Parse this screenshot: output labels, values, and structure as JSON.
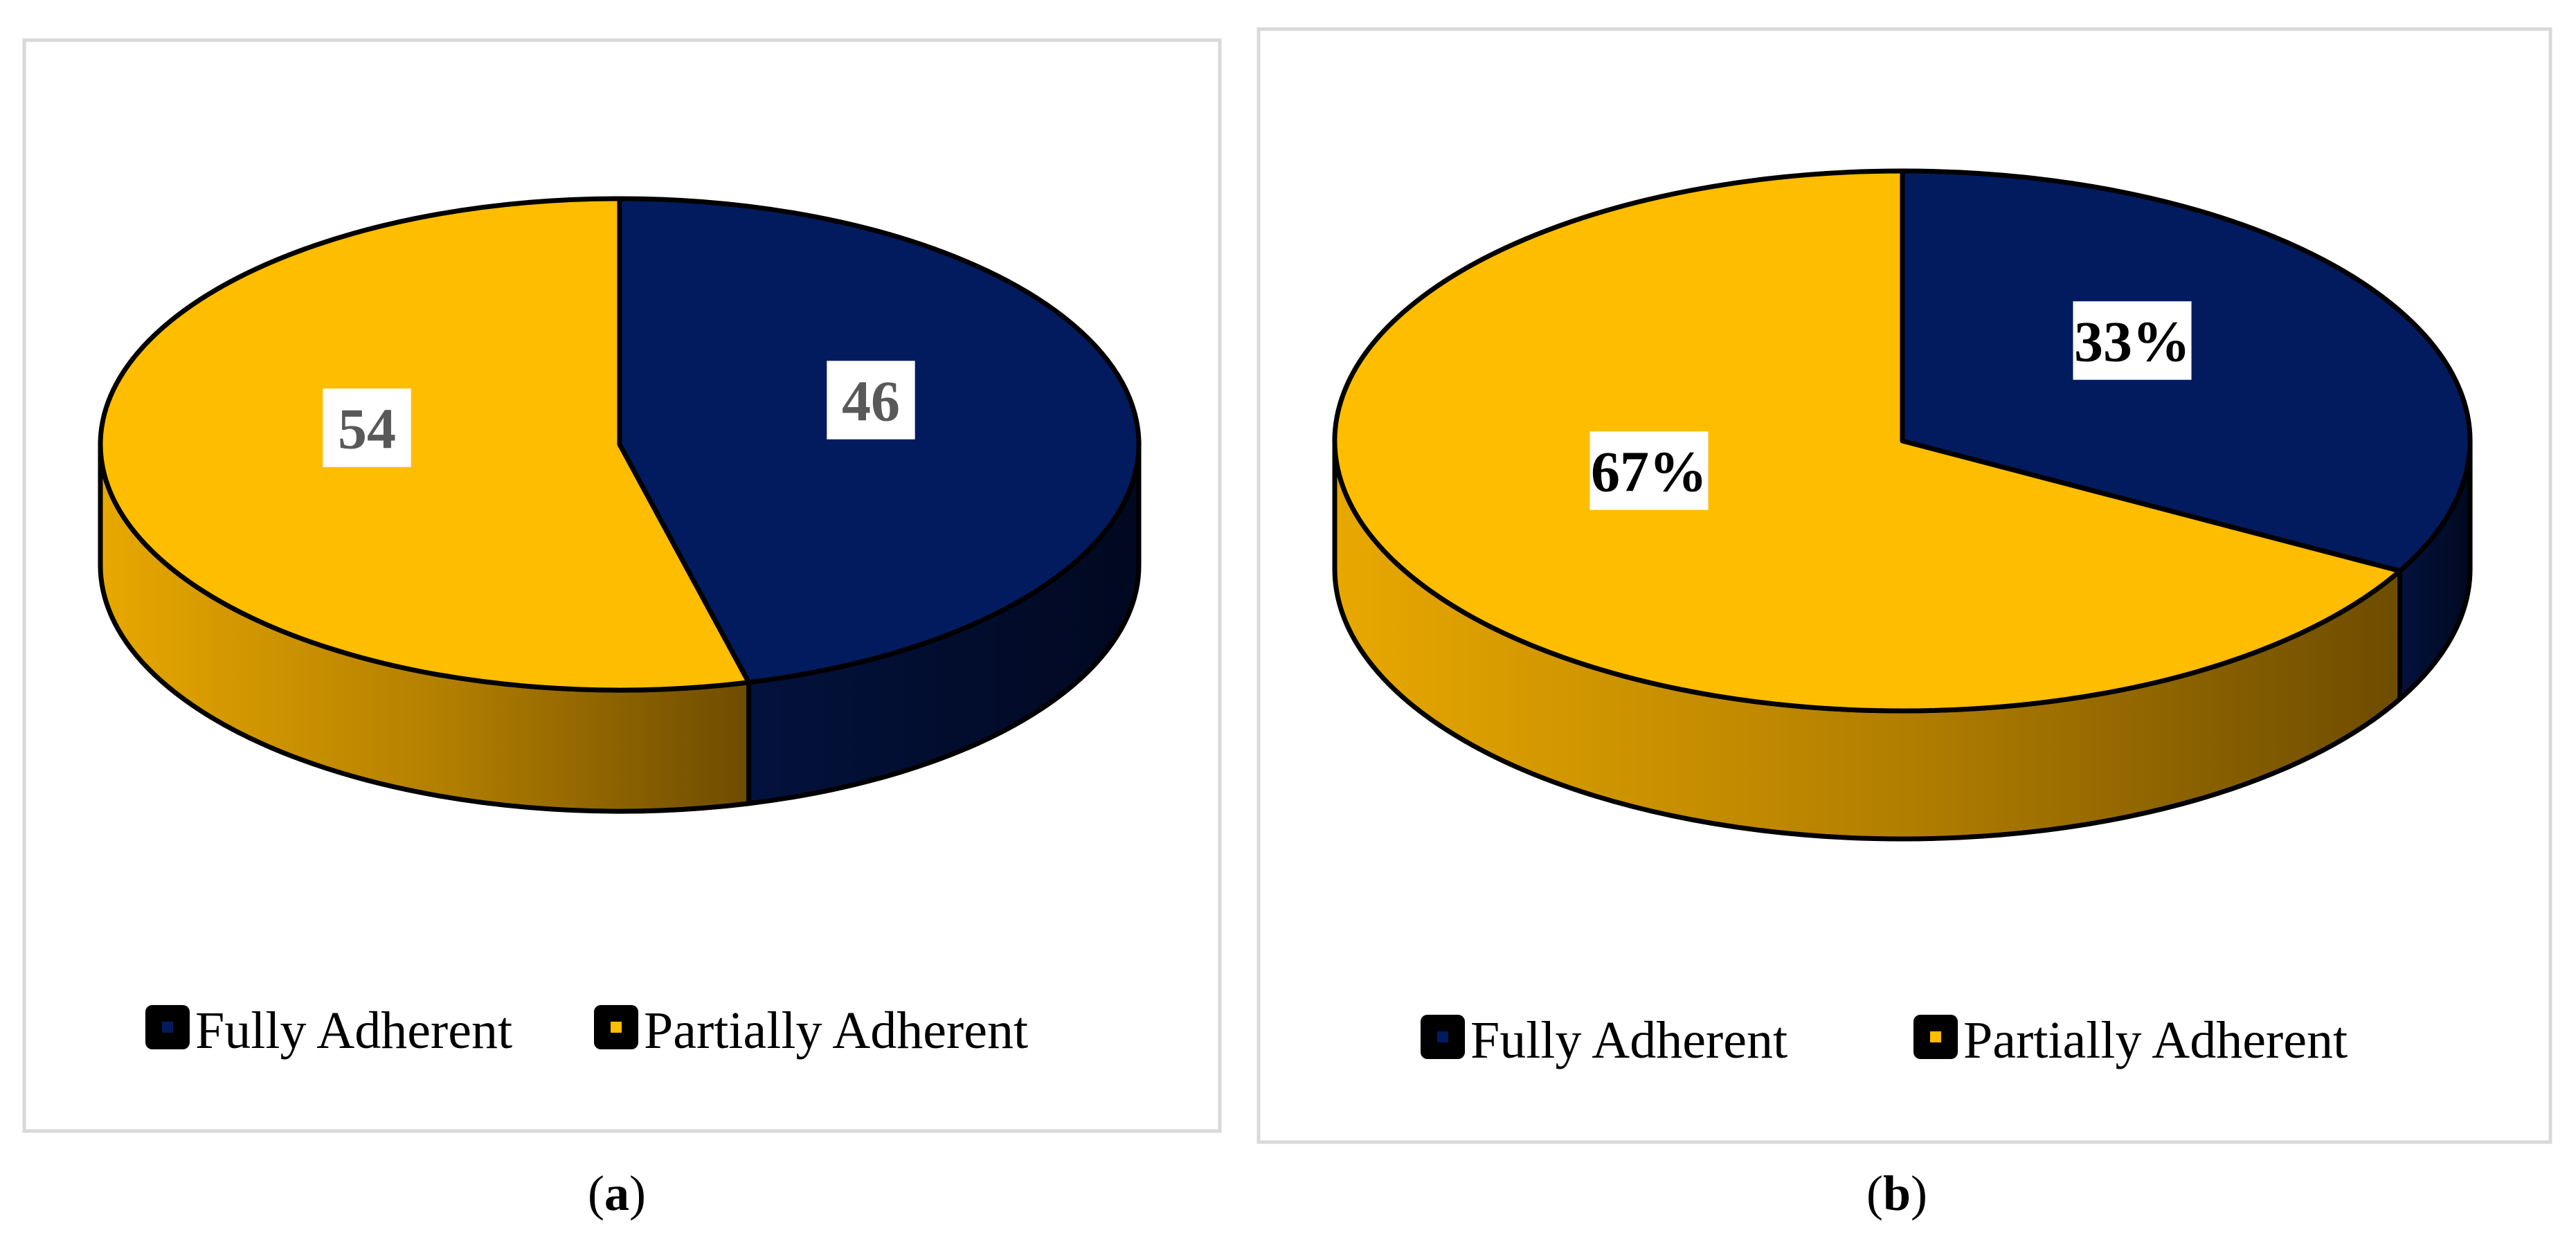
{
  "colors": {
    "fully_adherent": "#021B5E",
    "partially_adherent": "#FFBD00",
    "frame_border": "#D9D9D9",
    "outline": "#000000",
    "label_a": "#595959",
    "label_b": "#000000"
  },
  "chart_data": [
    {
      "type": "pie",
      "panel": "a",
      "categories": [
        "Fully Adherent",
        "Partially Adherent"
      ],
      "values": [
        46,
        54
      ],
      "data_labels": [
        "46",
        "54"
      ],
      "legend": [
        "Fully Adherent",
        "Partially Adherent"
      ],
      "legend_position": "bottom",
      "style": "3d",
      "caption": {
        "open": "(",
        "letter": "a",
        "close": ")"
      }
    },
    {
      "type": "pie",
      "panel": "b",
      "categories": [
        "Fully Adherent",
        "Partially Adherent"
      ],
      "values": [
        33,
        67
      ],
      "data_labels": [
        "33%",
        "67%"
      ],
      "legend": [
        "Fully Adherent",
        "Partially Adherent"
      ],
      "legend_position": "bottom",
      "style": "3d",
      "caption": {
        "open": "(",
        "letter": "b",
        "close": ")"
      }
    }
  ]
}
